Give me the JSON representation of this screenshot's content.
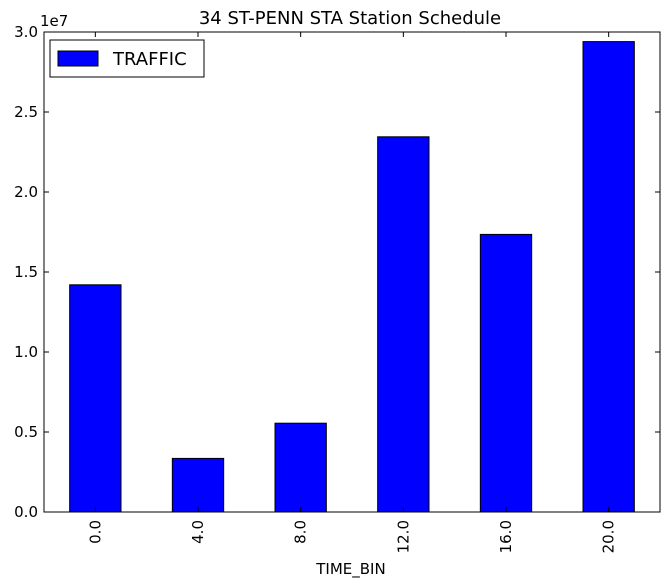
{
  "chart_data": {
    "type": "bar",
    "title": "34 ST-PENN STA Station Schedule",
    "xlabel": "TIME_BIN",
    "ylabel": "",
    "categories": [
      "0.0",
      "4.0",
      "8.0",
      "12.0",
      "16.0",
      "20.0"
    ],
    "series": [
      {
        "name": "TRAFFIC",
        "values": [
          14200000,
          3350000,
          5550000,
          23450000,
          17350000,
          29400000
        ]
      }
    ],
    "ylim": [
      0,
      30000000
    ],
    "yticks": [
      "0.0",
      "0.5",
      "1.0",
      "1.5",
      "2.0",
      "2.5",
      "3.0"
    ],
    "ytick_values": [
      0,
      5000000,
      10000000,
      15000000,
      20000000,
      25000000,
      30000000
    ],
    "y_offset_text": "1e7",
    "legend_position": "top-left",
    "grid": false,
    "bar_color": "#0000ff"
  }
}
